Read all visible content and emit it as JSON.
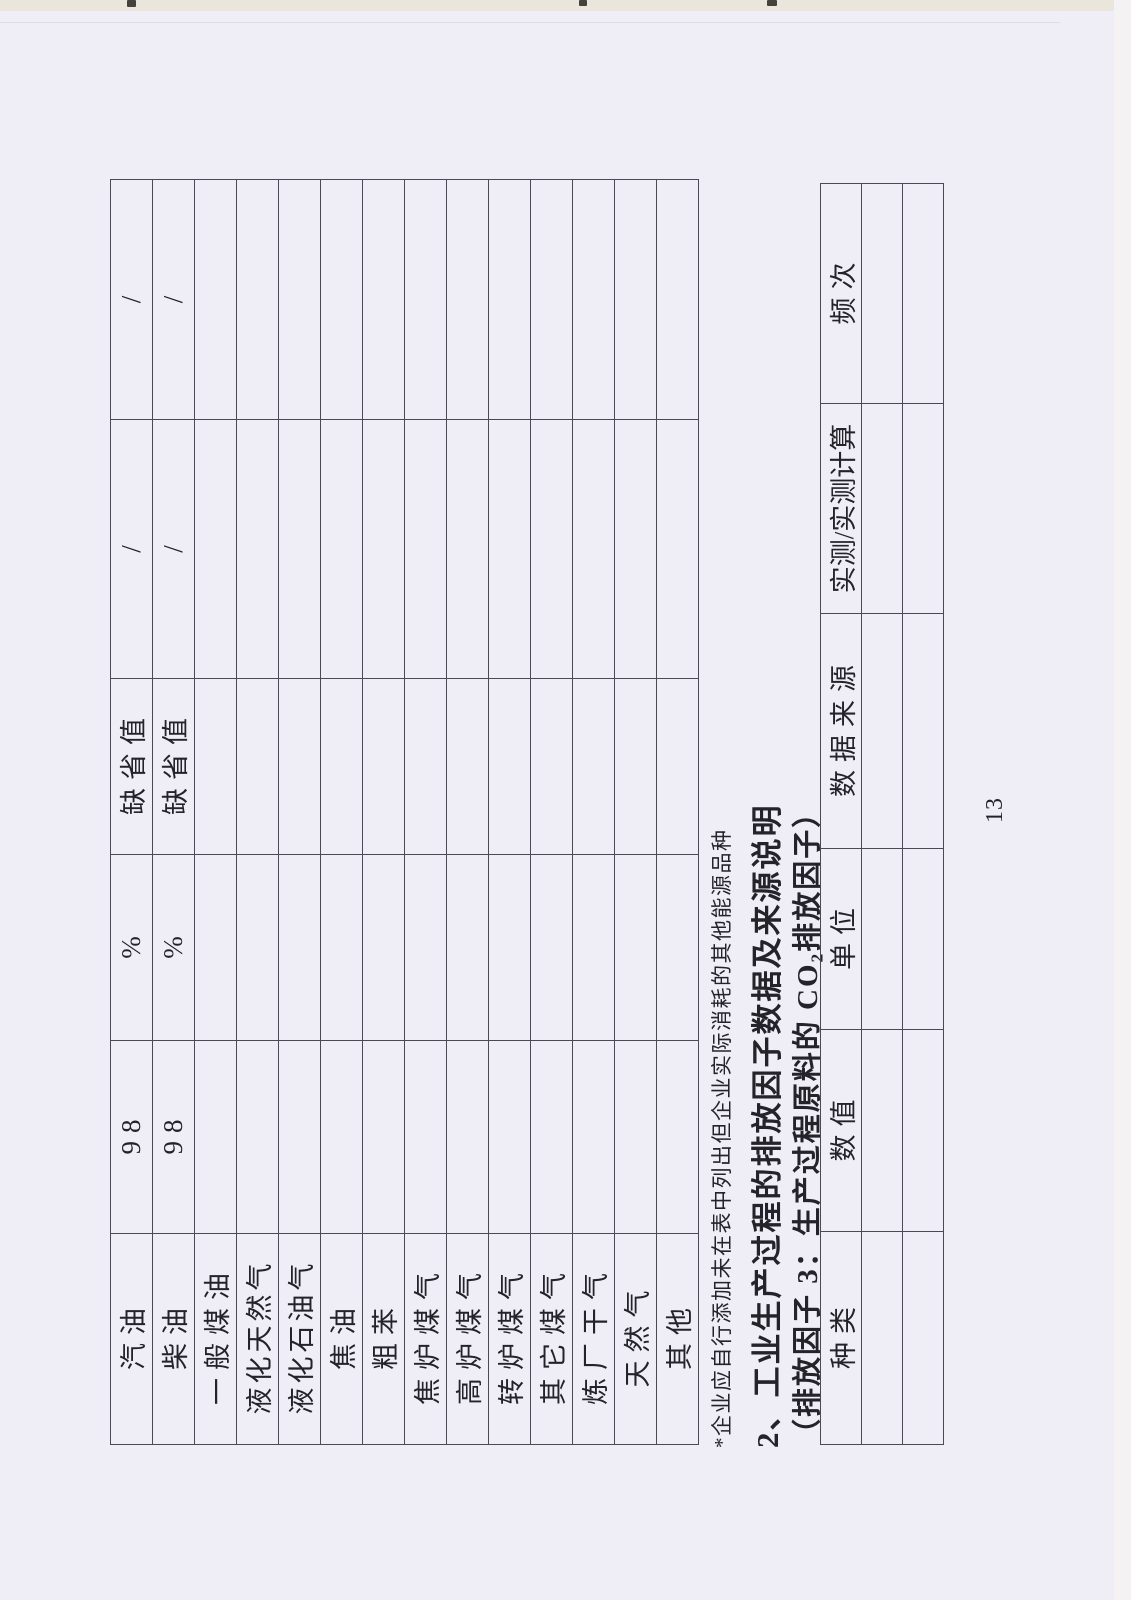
{
  "page_number": "13",
  "colors": {
    "paper": "#efeef6",
    "bed": "#eae6dc",
    "bed_light": "#f4f2f2",
    "line": "#4a4a54",
    "ink": "#232329"
  },
  "fuel_table": {
    "rows": [
      [
        "汽油",
        "98",
        "%",
        "缺省值",
        "/",
        "/"
      ],
      [
        "柴油",
        "98",
        "%",
        "缺省值",
        "/",
        "/"
      ],
      [
        "一般煤油",
        "",
        "",
        "",
        "",
        ""
      ],
      [
        "液化天然气",
        "",
        "",
        "",
        "",
        ""
      ],
      [
        "液化石油气",
        "",
        "",
        "",
        "",
        ""
      ],
      [
        "焦油",
        "",
        "",
        "",
        "",
        ""
      ],
      [
        "粗苯",
        "",
        "",
        "",
        "",
        ""
      ],
      [
        "焦炉煤气",
        "",
        "",
        "",
        "",
        ""
      ],
      [
        "高炉煤气",
        "",
        "",
        "",
        "",
        ""
      ],
      [
        "转炉煤气",
        "",
        "",
        "",
        "",
        ""
      ],
      [
        "其它煤气",
        "",
        "",
        "",
        "",
        ""
      ],
      [
        "炼厂干气",
        "",
        "",
        "",
        "",
        ""
      ],
      [
        "天然气",
        "",
        "",
        "",
        "",
        ""
      ],
      [
        "其他",
        "",
        "",
        "",
        "",
        ""
      ]
    ]
  },
  "footnote": "*企业应自行添加未在表中列出但企业实际消耗的其他能源品种",
  "section_heading": "2、工业生产过程的排放因子数据及来源说明",
  "section_subheading": "（排放因子 3：生产过程原料的 CO₂排放因子）",
  "factor_table": {
    "headers": [
      "种类",
      "数值",
      "单位",
      "数据来源",
      "实测/实测计算",
      "频次"
    ],
    "rows": [
      [
        "",
        "",
        "",
        "",
        "",
        ""
      ],
      [
        "",
        "",
        "",
        "",
        "",
        ""
      ]
    ]
  }
}
